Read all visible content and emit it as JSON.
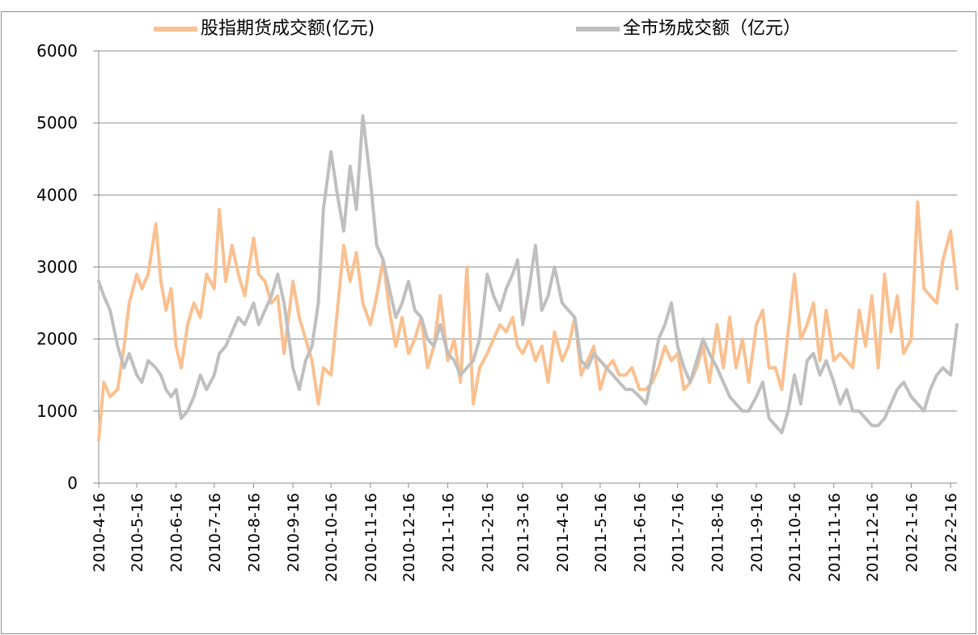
{
  "chart_data": {
    "type": "line",
    "title": "",
    "xlabel": "",
    "ylabel": "",
    "ylim": [
      0,
      6000
    ],
    "yticks": [
      0,
      1000,
      2000,
      3000,
      4000,
      5000,
      6000
    ],
    "grid": "horizontal",
    "legend_position": "top",
    "x_tick_labels": [
      "2010-4-16",
      "2010-5-16",
      "2010-6-16",
      "2010-7-16",
      "2010-8-16",
      "2010-9-16",
      "2010-10-16",
      "2010-11-16",
      "2010-12-16",
      "2011-1-16",
      "2011-2-16",
      "2011-3-16",
      "2011-4-16",
      "2011-5-16",
      "2011-6-16",
      "2011-7-16",
      "2011-8-16",
      "2011-9-16",
      "2011-10-16",
      "2011-11-16",
      "2011-12-16",
      "2012-1-16",
      "2012-2-16"
    ],
    "series": [
      {
        "name": "股指期货成交额(亿元)",
        "color": "#FAC090",
        "x": [
          "2010-04-16",
          "2010-04-20",
          "2010-04-25",
          "2010-05-01",
          "2010-05-06",
          "2010-05-10",
          "2010-05-16",
          "2010-05-20",
          "2010-05-25",
          "2010-05-31",
          "2010-06-04",
          "2010-06-08",
          "2010-06-12",
          "2010-06-16",
          "2010-06-20",
          "2010-06-25",
          "2010-06-30",
          "2010-07-05",
          "2010-07-10",
          "2010-07-16",
          "2010-07-20",
          "2010-07-25",
          "2010-07-30",
          "2010-08-04",
          "2010-08-09",
          "2010-08-16",
          "2010-08-20",
          "2010-08-25",
          "2010-08-30",
          "2010-09-04",
          "2010-09-09",
          "2010-09-16",
          "2010-09-21",
          "2010-09-26",
          "2010-10-01",
          "2010-10-06",
          "2010-10-10",
          "2010-10-16",
          "2010-10-21",
          "2010-10-26",
          "2010-10-31",
          "2010-11-05",
          "2010-11-10",
          "2010-11-16",
          "2010-11-21",
          "2010-11-26",
          "2010-12-01",
          "2010-12-06",
          "2010-12-11",
          "2010-12-16",
          "2010-12-21",
          "2010-12-26",
          "2010-12-31",
          "2011-01-05",
          "2011-01-10",
          "2011-01-16",
          "2011-01-21",
          "2011-01-26",
          "2011-01-31",
          "2011-02-05",
          "2011-02-10",
          "2011-02-16",
          "2011-02-21",
          "2011-02-26",
          "2011-03-03",
          "2011-03-08",
          "2011-03-12",
          "2011-03-16",
          "2011-03-21",
          "2011-03-26",
          "2011-03-31",
          "2011-04-05",
          "2011-04-10",
          "2011-04-16",
          "2011-04-21",
          "2011-04-26",
          "2011-05-01",
          "2011-05-06",
          "2011-05-11",
          "2011-05-16",
          "2011-05-21",
          "2011-05-26",
          "2011-05-31",
          "2011-06-05",
          "2011-06-10",
          "2011-06-16",
          "2011-06-21",
          "2011-06-26",
          "2011-07-01",
          "2011-07-06",
          "2011-07-11",
          "2011-07-16",
          "2011-07-21",
          "2011-07-26",
          "2011-07-31",
          "2011-08-05",
          "2011-08-10",
          "2011-08-16",
          "2011-08-21",
          "2011-08-26",
          "2011-08-31",
          "2011-09-05",
          "2011-09-10",
          "2011-09-16",
          "2011-09-21",
          "2011-09-26",
          "2011-10-01",
          "2011-10-06",
          "2011-10-11",
          "2011-10-16",
          "2011-10-21",
          "2011-10-26",
          "2011-10-31",
          "2011-11-05",
          "2011-11-10",
          "2011-11-16",
          "2011-11-21",
          "2011-11-26",
          "2011-12-01",
          "2011-12-06",
          "2011-12-11",
          "2011-12-16",
          "2011-12-21",
          "2011-12-26",
          "2011-12-31",
          "2012-01-05",
          "2012-01-10",
          "2012-01-16",
          "2012-01-21",
          "2012-01-26",
          "2012-01-31",
          "2012-02-05",
          "2012-02-10",
          "2012-02-16",
          "2012-02-21"
        ],
        "values": [
          600,
          1400,
          1200,
          1300,
          1900,
          2500,
          2900,
          2700,
          2900,
          3600,
          2800,
          2400,
          2700,
          1900,
          1600,
          2200,
          2500,
          2300,
          2900,
          2700,
          3800,
          2800,
          3300,
          2900,
          2600,
          3400,
          2900,
          2800,
          2500,
          2600,
          1800,
          2800,
          2300,
          2000,
          1700,
          1100,
          1600,
          1500,
          2400,
          3300,
          2800,
          3200,
          2500,
          2200,
          2600,
          3100,
          2400,
          1900,
          2300,
          1800,
          2000,
          2300,
          1600,
          1900,
          2600,
          1700,
          2000,
          1400,
          3000,
          1100,
          1600,
          1800,
          2000,
          2200,
          2100,
          2300,
          1900,
          1800,
          2000,
          1700,
          1900,
          1400,
          2100,
          1700,
          1900,
          2300,
          1500,
          1700,
          1900,
          1300,
          1600,
          1700,
          1500,
          1500,
          1600,
          1300,
          1300,
          1400,
          1600,
          1900,
          1700,
          1800,
          1300,
          1400,
          1600,
          1900,
          1400,
          2200,
          1600,
          2300,
          1600,
          2000,
          1400,
          2200,
          2400,
          1600,
          1600,
          1300,
          2100,
          2900,
          2000,
          2200,
          2500,
          1700,
          2400,
          1700,
          1800,
          1700,
          1600,
          2400,
          1900,
          2600,
          1600,
          2900,
          2100,
          2600,
          1800,
          2000,
          3900,
          2700,
          2600,
          2500,
          3100,
          3500,
          2700
        ]
      },
      {
        "name": "全市场成交额（亿元）",
        "color": "#BFBFBF",
        "x": [
          "2010-04-16",
          "2010-04-20",
          "2010-04-25",
          "2010-05-01",
          "2010-05-06",
          "2010-05-10",
          "2010-05-16",
          "2010-05-20",
          "2010-05-25",
          "2010-05-31",
          "2010-06-04",
          "2010-06-08",
          "2010-06-12",
          "2010-06-16",
          "2010-06-20",
          "2010-06-25",
          "2010-06-30",
          "2010-07-05",
          "2010-07-10",
          "2010-07-16",
          "2010-07-20",
          "2010-07-25",
          "2010-07-30",
          "2010-08-04",
          "2010-08-09",
          "2010-08-16",
          "2010-08-20",
          "2010-08-25",
          "2010-08-30",
          "2010-09-04",
          "2010-09-09",
          "2010-09-16",
          "2010-09-21",
          "2010-09-26",
          "2010-10-01",
          "2010-10-06",
          "2010-10-10",
          "2010-10-16",
          "2010-10-21",
          "2010-10-26",
          "2010-10-31",
          "2010-11-05",
          "2010-11-10",
          "2010-11-16",
          "2010-11-21",
          "2010-11-26",
          "2010-12-01",
          "2010-12-06",
          "2010-12-11",
          "2010-12-16",
          "2010-12-21",
          "2010-12-26",
          "2010-12-31",
          "2011-01-05",
          "2011-01-10",
          "2011-01-16",
          "2011-01-21",
          "2011-01-26",
          "2011-01-31",
          "2011-02-05",
          "2011-02-10",
          "2011-02-16",
          "2011-02-21",
          "2011-02-26",
          "2011-03-03",
          "2011-03-08",
          "2011-03-12",
          "2011-03-16",
          "2011-03-21",
          "2011-03-26",
          "2011-03-31",
          "2011-04-05",
          "2011-04-10",
          "2011-04-16",
          "2011-04-21",
          "2011-04-26",
          "2011-05-01",
          "2011-05-06",
          "2011-05-11",
          "2011-05-16",
          "2011-05-21",
          "2011-05-26",
          "2011-05-31",
          "2011-06-05",
          "2011-06-10",
          "2011-06-16",
          "2011-06-21",
          "2011-06-26",
          "2011-07-01",
          "2011-07-06",
          "2011-07-11",
          "2011-07-16",
          "2011-07-21",
          "2011-07-26",
          "2011-07-31",
          "2011-08-05",
          "2011-08-10",
          "2011-08-16",
          "2011-08-21",
          "2011-08-26",
          "2011-08-31",
          "2011-09-05",
          "2011-09-10",
          "2011-09-16",
          "2011-09-21",
          "2011-09-26",
          "2011-10-01",
          "2011-10-06",
          "2011-10-11",
          "2011-10-16",
          "2011-10-21",
          "2011-10-26",
          "2011-10-31",
          "2011-11-05",
          "2011-11-10",
          "2011-11-16",
          "2011-11-21",
          "2011-11-26",
          "2011-12-01",
          "2011-12-06",
          "2011-12-11",
          "2011-12-16",
          "2011-12-21",
          "2011-12-26",
          "2011-12-31",
          "2012-01-05",
          "2012-01-10",
          "2012-01-16",
          "2012-01-21",
          "2012-01-26",
          "2012-01-31",
          "2012-02-05",
          "2012-02-10",
          "2012-02-16",
          "2012-02-21"
        ],
        "values": [
          2800,
          2600,
          2400,
          1900,
          1600,
          1800,
          1500,
          1400,
          1700,
          1600,
          1500,
          1300,
          1200,
          1300,
          900,
          1000,
          1200,
          1500,
          1300,
          1500,
          1800,
          1900,
          2100,
          2300,
          2200,
          2500,
          2200,
          2400,
          2600,
          2900,
          2500,
          1600,
          1300,
          1700,
          1900,
          2500,
          3800,
          4600,
          4000,
          3500,
          4400,
          3800,
          5100,
          4200,
          3300,
          3100,
          2700,
          2300,
          2500,
          2800,
          2400,
          2300,
          2000,
          1900,
          2200,
          1800,
          1700,
          1500,
          1600,
          1700,
          2000,
          2900,
          2600,
          2400,
          2700,
          2900,
          3100,
          2200,
          2700,
          3300,
          2400,
          2600,
          3000,
          2500,
          2400,
          2300,
          1700,
          1600,
          1800,
          1700,
          1600,
          1500,
          1400,
          1300,
          1300,
          1200,
          1100,
          1500,
          2000,
          2200,
          2500,
          1900,
          1600,
          1400,
          1700,
          2000,
          1800,
          1600,
          1400,
          1200,
          1100,
          1000,
          1000,
          1200,
          1400,
          900,
          800,
          700,
          1000,
          1500,
          1100,
          1700,
          1800,
          1500,
          1700,
          1400,
          1100,
          1300,
          1000,
          1000,
          900,
          800,
          800,
          900,
          1100,
          1300,
          1400,
          1200,
          1100,
          1000,
          1300,
          1500,
          1600,
          1500,
          2200
        ]
      }
    ]
  },
  "legend": {
    "series_0_label": "股指期货成交额(亿元)",
    "series_1_label": "全市场成交额（亿元）"
  }
}
